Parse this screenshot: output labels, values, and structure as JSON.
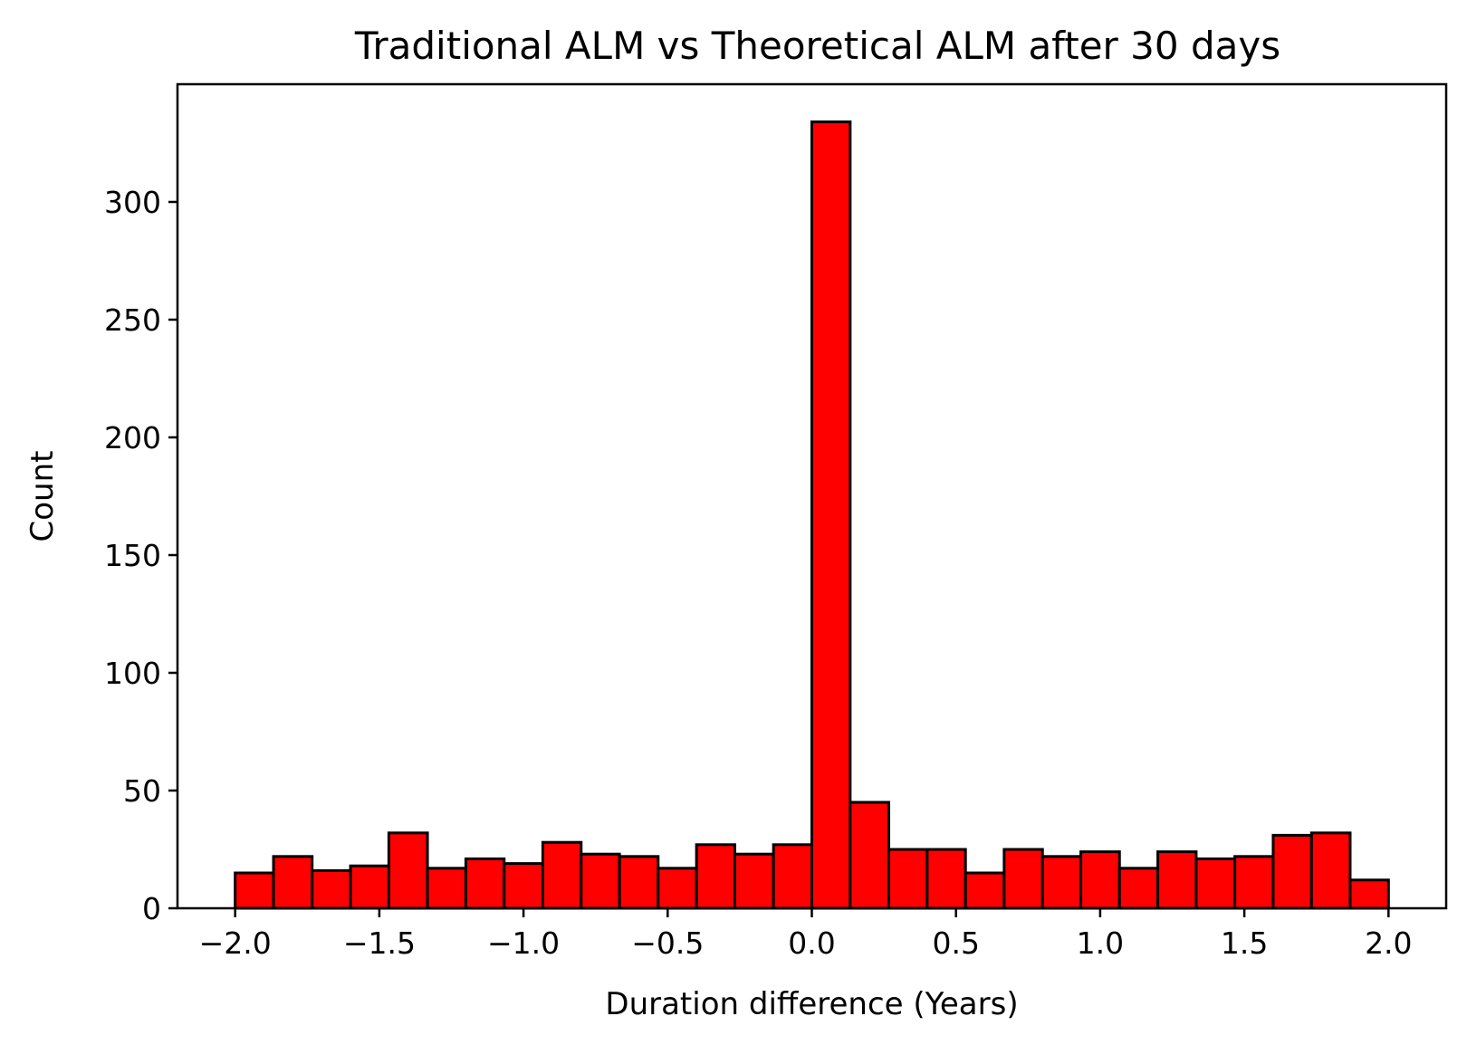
{
  "chart_data": {
    "type": "bar",
    "title": "Traditional ALM vs Theoretical ALM after 30 days",
    "xlabel": "Duration difference (Years)",
    "ylabel": "Count",
    "xlim": [
      -2.2,
      2.2
    ],
    "ylim": [
      0,
      350
    ],
    "bar_color": "#ff0000",
    "edge_color": "#000000",
    "grid": false,
    "x_ticks": [
      -2.0,
      -1.5,
      -1.0,
      -0.5,
      0.0,
      0.5,
      1.0,
      1.5,
      2.0
    ],
    "x_tick_labels": [
      "−2.0",
      "−1.5",
      "−1.0",
      "−0.5",
      "0.0",
      "0.5",
      "1.0",
      "1.5",
      "2.0"
    ],
    "y_ticks": [
      0,
      50,
      100,
      150,
      200,
      250,
      300
    ],
    "y_tick_labels": [
      "0",
      "50",
      "100",
      "150",
      "200",
      "250",
      "300"
    ],
    "bins": [
      {
        "x0": -2.0,
        "x1": -1.867,
        "count": 15
      },
      {
        "x0": -1.867,
        "x1": -1.733,
        "count": 22
      },
      {
        "x0": -1.733,
        "x1": -1.6,
        "count": 16
      },
      {
        "x0": -1.6,
        "x1": -1.467,
        "count": 18
      },
      {
        "x0": -1.467,
        "x1": -1.333,
        "count": 32
      },
      {
        "x0": -1.333,
        "x1": -1.2,
        "count": 17
      },
      {
        "x0": -1.2,
        "x1": -1.067,
        "count": 21
      },
      {
        "x0": -1.067,
        "x1": -0.933,
        "count": 19
      },
      {
        "x0": -0.933,
        "x1": -0.8,
        "count": 28
      },
      {
        "x0": -0.8,
        "x1": -0.667,
        "count": 23
      },
      {
        "x0": -0.667,
        "x1": -0.533,
        "count": 22
      },
      {
        "x0": -0.533,
        "x1": -0.4,
        "count": 17
      },
      {
        "x0": -0.4,
        "x1": -0.267,
        "count": 27
      },
      {
        "x0": -0.267,
        "x1": -0.133,
        "count": 23
      },
      {
        "x0": -0.133,
        "x1": 0.0,
        "count": 27
      },
      {
        "x0": 0.0,
        "x1": 0.133,
        "count": 334
      },
      {
        "x0": 0.133,
        "x1": 0.267,
        "count": 45
      },
      {
        "x0": 0.267,
        "x1": 0.4,
        "count": 25
      },
      {
        "x0": 0.4,
        "x1": 0.533,
        "count": 25
      },
      {
        "x0": 0.533,
        "x1": 0.667,
        "count": 15
      },
      {
        "x0": 0.667,
        "x1": 0.8,
        "count": 25
      },
      {
        "x0": 0.8,
        "x1": 0.933,
        "count": 22
      },
      {
        "x0": 0.933,
        "x1": 1.067,
        "count": 24
      },
      {
        "x0": 1.067,
        "x1": 1.2,
        "count": 17
      },
      {
        "x0": 1.2,
        "x1": 1.333,
        "count": 24
      },
      {
        "x0": 1.333,
        "x1": 1.467,
        "count": 21
      },
      {
        "x0": 1.467,
        "x1": 1.6,
        "count": 22
      },
      {
        "x0": 1.6,
        "x1": 1.733,
        "count": 31
      },
      {
        "x0": 1.733,
        "x1": 1.867,
        "count": 32
      },
      {
        "x0": 1.867,
        "x1": 2.0,
        "count": 12
      }
    ]
  }
}
